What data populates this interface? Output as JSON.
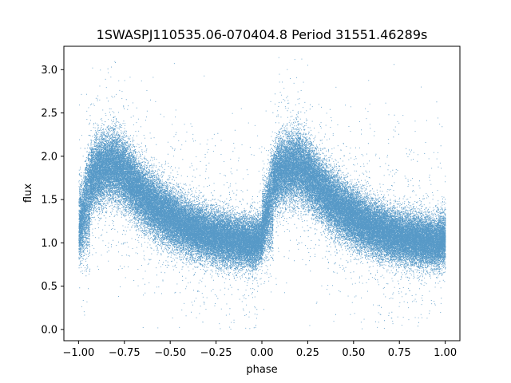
{
  "chart_data": {
    "type": "scatter",
    "title": "1SWASPJ110535.06-070404.8 Period 31551.46289s",
    "xlabel": "phase",
    "ylabel": "flux",
    "xlim": [
      -1.08,
      1.08
    ],
    "ylim": [
      -0.13,
      3.27
    ],
    "xticks": [
      -1.0,
      -0.75,
      -0.5,
      -0.25,
      0.0,
      0.25,
      0.5,
      0.75,
      1.0
    ],
    "xtick_labels": [
      "−1.00",
      "−0.75",
      "−0.50",
      "−0.25",
      "0.00",
      "0.25",
      "0.50",
      "0.75",
      "1.00"
    ],
    "yticks": [
      0.0,
      0.5,
      1.0,
      1.5,
      2.0,
      2.5,
      3.0
    ],
    "ytick_labels": [
      "0.0",
      "0.5",
      "1.0",
      "1.5",
      "2.0",
      "2.5",
      "3.0"
    ],
    "grid": false,
    "marker_color": "#1f77b4",
    "x_range": [
      -1.0,
      1.0
    ],
    "approx_points": 90000,
    "light_curve_profile": {
      "phase": [
        0.0,
        0.05,
        0.1,
        0.15,
        0.2,
        0.25,
        0.3,
        0.35,
        0.4,
        0.45,
        0.5,
        0.55,
        0.6,
        0.65,
        0.7,
        0.75,
        0.8,
        0.85,
        0.9,
        0.95,
        1.0
      ],
      "flux": [
        1.05,
        1.7,
        1.82,
        1.88,
        1.9,
        1.8,
        1.67,
        1.55,
        1.45,
        1.36,
        1.3,
        1.24,
        1.18,
        1.14,
        1.1,
        1.07,
        1.05,
        1.03,
        1.02,
        1.0,
        1.05
      ]
    }
  }
}
